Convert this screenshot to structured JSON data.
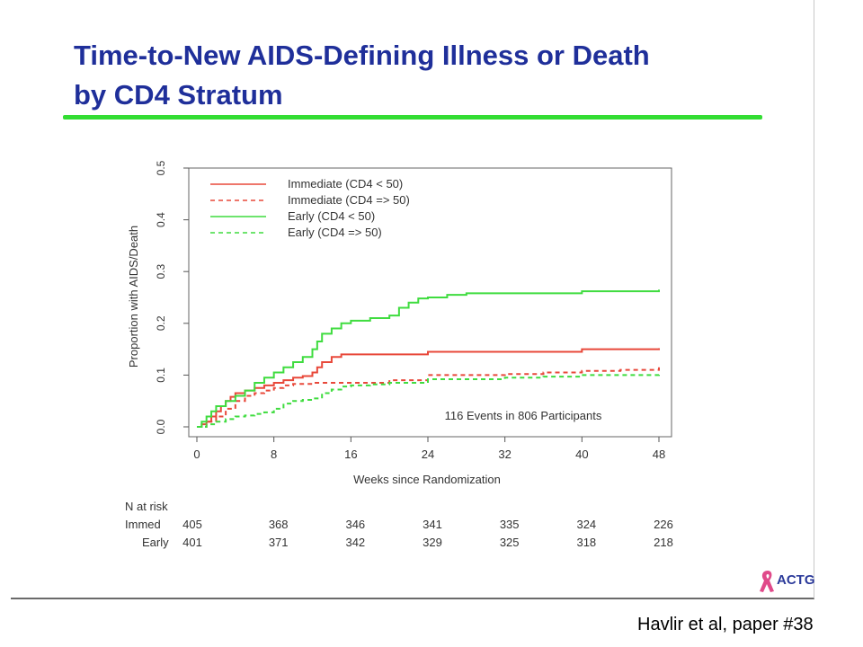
{
  "slide": {
    "title_line1": "Time-to-New AIDS-Defining Illness or Death",
    "title_line2": "by CD4 Stratum",
    "citation": "Havlir et al, paper #38",
    "logo_text": "ACTG"
  },
  "colors": {
    "title": "#1f2f9a",
    "rule": "#33dd33",
    "immediate": "#e8483a",
    "early": "#3fdc3f"
  },
  "chart_data": {
    "type": "line",
    "title": "",
    "xlabel": "Weeks since Randomization",
    "ylabel": "Proportion with AIDS/Death",
    "xlim": [
      0,
      48
    ],
    "ylim": [
      0,
      0.5
    ],
    "x_ticks": [
      "0",
      "8",
      "16",
      "24",
      "32",
      "40",
      "48"
    ],
    "y_ticks": [
      "0.0",
      "0.1",
      "0.2",
      "0.3",
      "0.4",
      "0.5"
    ],
    "grid": false,
    "legend_position": "top-left",
    "annotation": "116 Events in 806 Participants",
    "series": [
      {
        "name": "Immediate (CD4 < 50)",
        "color": "#e8483a",
        "dash": "solid",
        "points": [
          [
            0,
            0
          ],
          [
            0.5,
            0.005
          ],
          [
            1,
            0.01
          ],
          [
            1.5,
            0.02
          ],
          [
            2,
            0.03
          ],
          [
            2.5,
            0.04
          ],
          [
            3,
            0.05
          ],
          [
            3.5,
            0.058
          ],
          [
            4,
            0.065
          ],
          [
            5,
            0.07
          ],
          [
            6,
            0.075
          ],
          [
            7,
            0.08
          ],
          [
            8,
            0.085
          ],
          [
            9,
            0.09
          ],
          [
            10,
            0.095
          ],
          [
            11,
            0.098
          ],
          [
            12,
            0.105
          ],
          [
            12.5,
            0.115
          ],
          [
            13,
            0.125
          ],
          [
            14,
            0.135
          ],
          [
            15,
            0.14
          ],
          [
            20,
            0.14
          ],
          [
            24,
            0.145
          ],
          [
            28,
            0.145
          ],
          [
            32,
            0.145
          ],
          [
            40,
            0.15
          ],
          [
            44,
            0.15
          ],
          [
            48,
            0.152
          ]
        ]
      },
      {
        "name": "Immediate (CD4 => 50)",
        "color": "#e8483a",
        "dash": "dashed",
        "points": [
          [
            0,
            0
          ],
          [
            1,
            0.01
          ],
          [
            2,
            0.02
          ],
          [
            3,
            0.035
          ],
          [
            4,
            0.05
          ],
          [
            5,
            0.06
          ],
          [
            6,
            0.065
          ],
          [
            7,
            0.07
          ],
          [
            8,
            0.075
          ],
          [
            9,
            0.08
          ],
          [
            10,
            0.083
          ],
          [
            12,
            0.085
          ],
          [
            16,
            0.085
          ],
          [
            20,
            0.09
          ],
          [
            24,
            0.1
          ],
          [
            28,
            0.1
          ],
          [
            32,
            0.102
          ],
          [
            36,
            0.105
          ],
          [
            40,
            0.108
          ],
          [
            44,
            0.11
          ],
          [
            48,
            0.115
          ]
        ]
      },
      {
        "name": "Early (CD4 < 50)",
        "color": "#3fdc3f",
        "dash": "solid",
        "points": [
          [
            0,
            0
          ],
          [
            0.5,
            0.01
          ],
          [
            1,
            0.02
          ],
          [
            1.5,
            0.03
          ],
          [
            2,
            0.04
          ],
          [
            3,
            0.05
          ],
          [
            4,
            0.06
          ],
          [
            5,
            0.07
          ],
          [
            6,
            0.085
          ],
          [
            7,
            0.095
          ],
          [
            8,
            0.105
          ],
          [
            9,
            0.115
          ],
          [
            10,
            0.125
          ],
          [
            11,
            0.135
          ],
          [
            12,
            0.15
          ],
          [
            12.5,
            0.165
          ],
          [
            13,
            0.18
          ],
          [
            14,
            0.19
          ],
          [
            15,
            0.2
          ],
          [
            16,
            0.205
          ],
          [
            18,
            0.21
          ],
          [
            20,
            0.215
          ],
          [
            21,
            0.23
          ],
          [
            22,
            0.24
          ],
          [
            23,
            0.248
          ],
          [
            24,
            0.25
          ],
          [
            26,
            0.255
          ],
          [
            28,
            0.258
          ],
          [
            32,
            0.258
          ],
          [
            36,
            0.258
          ],
          [
            40,
            0.262
          ],
          [
            44,
            0.262
          ],
          [
            48,
            0.265
          ]
        ]
      },
      {
        "name": "Early (CD4 => 50)",
        "color": "#3fdc3f",
        "dash": "dashed",
        "points": [
          [
            0,
            0
          ],
          [
            1,
            0.005
          ],
          [
            2,
            0.01
          ],
          [
            3,
            0.015
          ],
          [
            4,
            0.02
          ],
          [
            5,
            0.022
          ],
          [
            6,
            0.025
          ],
          [
            7,
            0.028
          ],
          [
            8,
            0.035
          ],
          [
            9,
            0.045
          ],
          [
            10,
            0.05
          ],
          [
            11,
            0.052
          ],
          [
            12,
            0.055
          ],
          [
            13,
            0.065
          ],
          [
            14,
            0.072
          ],
          [
            15,
            0.078
          ],
          [
            16,
            0.08
          ],
          [
            18,
            0.082
          ],
          [
            20,
            0.085
          ],
          [
            24,
            0.092
          ],
          [
            28,
            0.092
          ],
          [
            32,
            0.095
          ],
          [
            36,
            0.097
          ],
          [
            40,
            0.1
          ],
          [
            44,
            0.1
          ],
          [
            48,
            0.103
          ]
        ]
      }
    ],
    "at_risk": {
      "label": "N at risk",
      "weeks": [
        0,
        8,
        16,
        24,
        32,
        40,
        48
      ],
      "rows": [
        {
          "label": "Immed",
          "values": [
            "405",
            "368",
            "346",
            "341",
            "335",
            "324",
            "226"
          ]
        },
        {
          "label": "Early",
          "values": [
            "401",
            "371",
            "342",
            "329",
            "325",
            "318",
            "218"
          ]
        }
      ]
    }
  }
}
